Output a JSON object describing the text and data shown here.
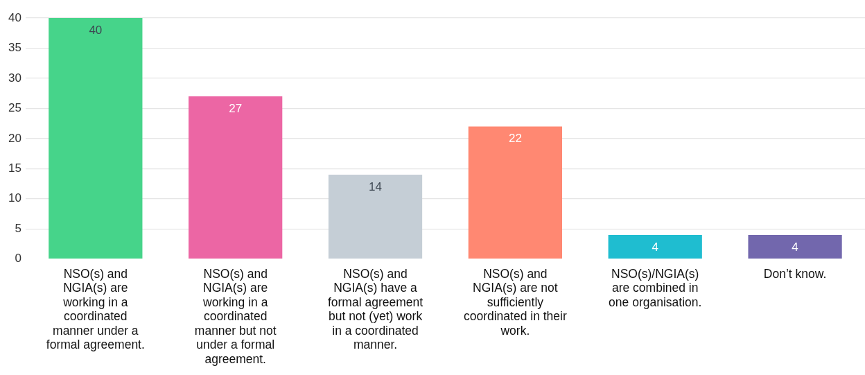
{
  "chart_data": {
    "type": "bar",
    "categories": [
      "NSO(s) and NGIA(s) are working in a coordinated manner under a formal agreement.",
      "NSO(s) and NGIA(s) are working in a coordinated manner but not under a formal agreement.",
      "NSO(s) and NGIA(s) have a formal agreement but not (yet) work in a coordinated manner.",
      "NSO(s) and NGIA(s) are not sufficiently coordinated in their work.",
      "NSO(s)/NGIA(s) are combined in one organisation.",
      "Don’t know."
    ],
    "values": [
      40,
      27,
      14,
      22,
      4,
      4
    ],
    "colors": [
      "#46d48a",
      "#ec66a4",
      "#c5ced6",
      "#ff8872",
      "#1fbdd0",
      "#7267ad"
    ],
    "ylim": [
      0,
      40
    ],
    "yticks": [
      0,
      5,
      10,
      15,
      20,
      25,
      30,
      35,
      40
    ],
    "grid": "y",
    "data_labels": true
  }
}
